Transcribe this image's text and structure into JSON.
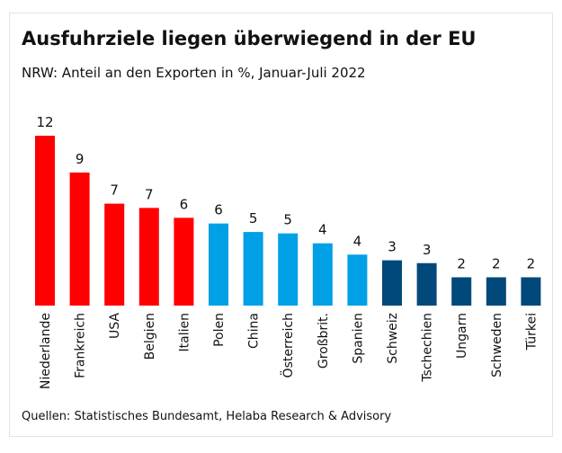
{
  "chart_data": {
    "type": "bar",
    "title": "Ausfuhrziele liegen überwiegend in der EU",
    "subtitle": "NRW: Anteil an den Exporten in %, Januar-Juli 2022",
    "source": "Quellen: Statistisches Bundesamt, Helaba Research & Advisory",
    "categories": [
      "Niederlande",
      "Frankreich",
      "USA",
      "Belgien",
      "Italien",
      "Polen",
      "China",
      "Österreich",
      "Großbrit.",
      "Spanien",
      "Schweiz",
      "Tschechien",
      "Ungarn",
      "Schweden",
      "Türkei"
    ],
    "values": [
      12.0,
      9.4,
      7.2,
      6.9,
      6.2,
      5.8,
      5.2,
      5.1,
      4.4,
      3.6,
      3.2,
      3.0,
      2.0,
      2.0,
      2.0
    ],
    "value_labels": [
      "12",
      "9",
      "7",
      "7",
      "6",
      "6",
      "5",
      "5",
      "4",
      "4",
      "3",
      "3",
      "2",
      "2",
      "2"
    ],
    "colors": [
      "#ff0000",
      "#ff0000",
      "#ff0000",
      "#ff0000",
      "#ff0000",
      "#00a0e6",
      "#00a0e6",
      "#00a0e6",
      "#00a0e6",
      "#00a0e6",
      "#00497a",
      "#00497a",
      "#00497a",
      "#00497a",
      "#00497a"
    ]
  }
}
